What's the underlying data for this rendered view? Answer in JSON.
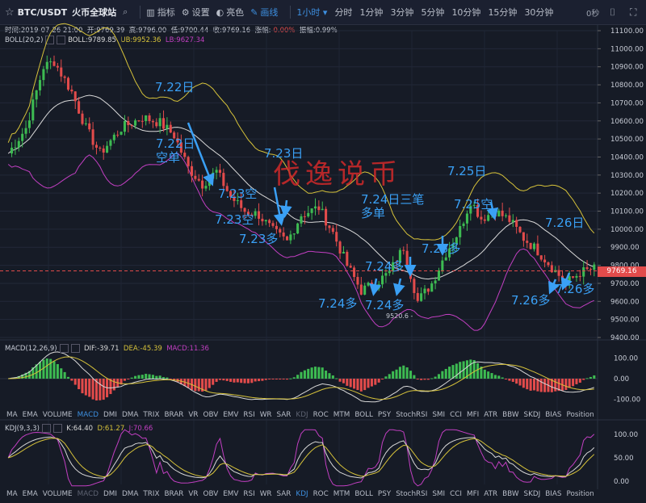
{
  "topbar": {
    "symbol": "BTC/USDT",
    "exchange": "火币全球站",
    "tools": [
      {
        "label": "指标",
        "icon": "indicator-icon"
      },
      {
        "label": "设置",
        "icon": "gear-icon"
      },
      {
        "label": "亮色",
        "icon": "palette-icon"
      },
      {
        "label": "画线",
        "icon": "pen-icon"
      }
    ],
    "intervals": [
      "1小时",
      "分时",
      "1分钟",
      "3分钟",
      "5分钟",
      "10分钟",
      "15分钟",
      "30分钟"
    ],
    "active_interval": "1小时",
    "countdown": "0秒"
  },
  "info": {
    "time": "时间:2019-07-26 21:00",
    "open": "开:9769.39",
    "high": "高:9796.00",
    "low": "低:9700.44",
    "close": "收:9769.16",
    "change_label": "涨幅:",
    "change": "-0.00%",
    "amp": "振幅:0.99%"
  },
  "boll": {
    "name": "BOLL(20,2)",
    "boll": "BOLL:9789.85",
    "ub": "UB:9952.36",
    "lb": "LB:9627.34"
  },
  "macd": {
    "name": "MACD(12,26,9)",
    "dif": "DIF:-39.71",
    "dea": "DEA:-45.39",
    "macd": "MACD:11.36"
  },
  "kdj": {
    "name": "KDJ(9,3,3)",
    "k": "K:64.40",
    "d": "D:61.27",
    "j": "J:70.66"
  },
  "price_axis": [
    "11100.00",
    "11000.00",
    "10900.00",
    "10800.00",
    "10700.00",
    "10600.00",
    "10500.00",
    "10400.00",
    "10300.00",
    "10200.00",
    "10100.00",
    "10000.00",
    "9900.00",
    "9800.00",
    "9700.00",
    "9600.00",
    "9500.00",
    "9400.00"
  ],
  "current_price": "9769.16",
  "low_marker": "9520.6 -",
  "macd_axis": [
    "100.00",
    "0.00",
    "-100.00"
  ],
  "kdj_axis": [
    "100.00",
    "50.00",
    "0.00"
  ],
  "indicator_tabs": [
    "MA",
    "EMA",
    "VOLUME",
    "MACD",
    "DMI",
    "DMA",
    "TRIX",
    "BRAR",
    "VR",
    "OBV",
    "EMV",
    "RSI",
    "WR",
    "SAR",
    "KDJ",
    "ROC",
    "MTM",
    "BOLL",
    "PSY",
    "StochRSI",
    "SMI",
    "CCI",
    "MFI",
    "ATR",
    "BBW",
    "SKDJ",
    "BIAS",
    "Position"
  ],
  "tabs_row1_selected": "MACD",
  "tabs_row1_dim": "KDJ",
  "tabs_row2_selected": "KDJ",
  "tabs_row2_dim": "MACD",
  "watermark": "伐逸说币",
  "annotations": [
    {
      "id": "a1",
      "text": "7.22日"
    },
    {
      "id": "a2",
      "text": "7.22日\n空单"
    },
    {
      "id": "a3",
      "text": "7.23空"
    },
    {
      "id": "a4",
      "text": "7.23空"
    },
    {
      "id": "a5",
      "text": "7.23日"
    },
    {
      "id": "a6",
      "text": "7.23多"
    },
    {
      "id": "a7",
      "text": "7.24日三笔\n多单"
    },
    {
      "id": "a8",
      "text": "7.24多"
    },
    {
      "id": "a9",
      "text": "7.24多"
    },
    {
      "id": "a10",
      "text": "7.24多"
    },
    {
      "id": "a11",
      "text": "7.25多"
    },
    {
      "id": "a12",
      "text": "7.25日"
    },
    {
      "id": "a13",
      "text": "7.25空"
    },
    {
      "id": "a14",
      "text": "7.26日"
    },
    {
      "id": "a15",
      "text": "7.26多"
    },
    {
      "id": "a16",
      "text": "7.26多"
    }
  ],
  "colors": {
    "up": "#3dbb52",
    "down": "#e24b4b",
    "ub": "#d6c23a",
    "lb": "#c23fc2",
    "mid": "#d8d8d8",
    "accent": "#3d8fe0",
    "note": "#3aa0f5"
  }
}
